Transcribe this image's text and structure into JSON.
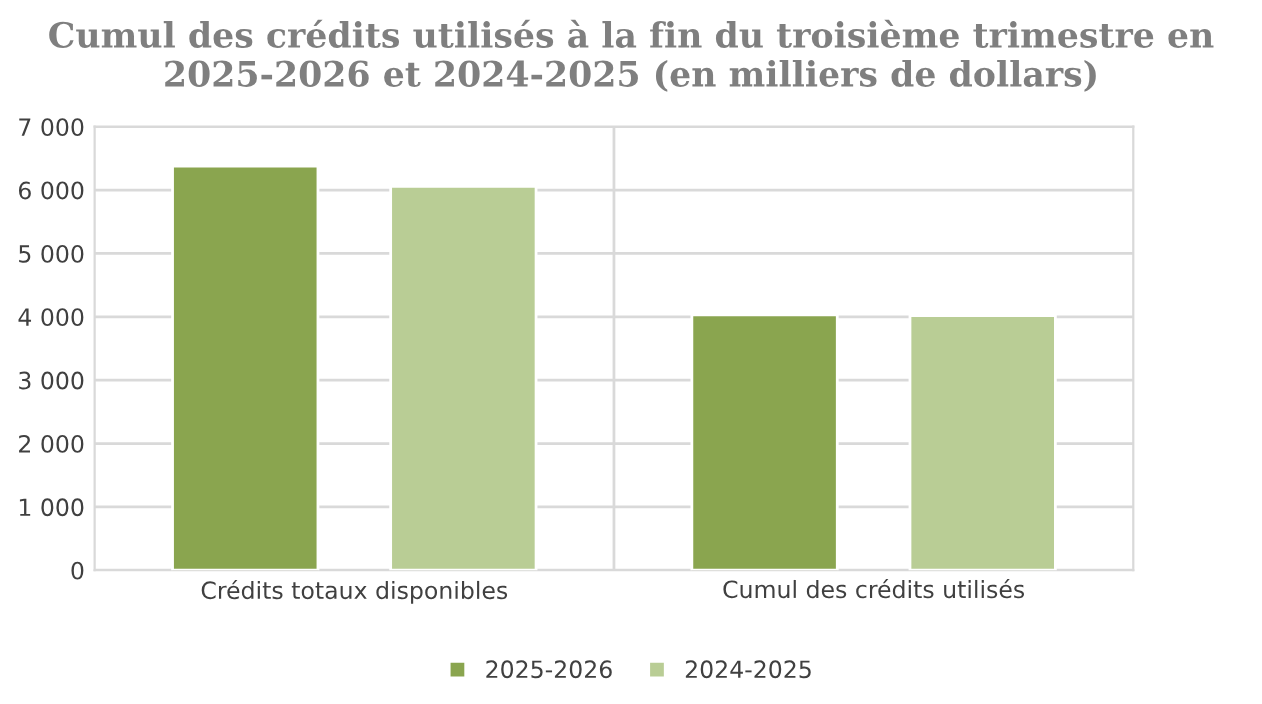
{
  "chart_data": {
    "type": "bar",
    "title": "Cumul des crédits utilisés à la fin du troisième trimestre en\n2025-2026 et 2024-2025 (en milliers de dollars)",
    "categories": [
      "Crédits totaux disponibles",
      "Cumul des crédits utilisés"
    ],
    "series": [
      {
        "name": "2025-2026",
        "color": "#8aa54f",
        "values": [
          6380,
          4030
        ]
      },
      {
        "name": "2024-2025",
        "color": "#b9cd95",
        "values": [
          6060,
          4020
        ]
      }
    ],
    "ylim": [
      0,
      7000
    ],
    "yticks": [
      {
        "value": 0,
        "label": "0"
      },
      {
        "value": 1000,
        "label": "1 000"
      },
      {
        "value": 2000,
        "label": "2 000"
      },
      {
        "value": 3000,
        "label": "3 000"
      },
      {
        "value": 4000,
        "label": "4 000"
      },
      {
        "value": 5000,
        "label": "5 000"
      },
      {
        "value": 6000,
        "label": "6 000"
      },
      {
        "value": 7000,
        "label": "7 000"
      }
    ],
    "grid": true,
    "legend": "bottom"
  }
}
